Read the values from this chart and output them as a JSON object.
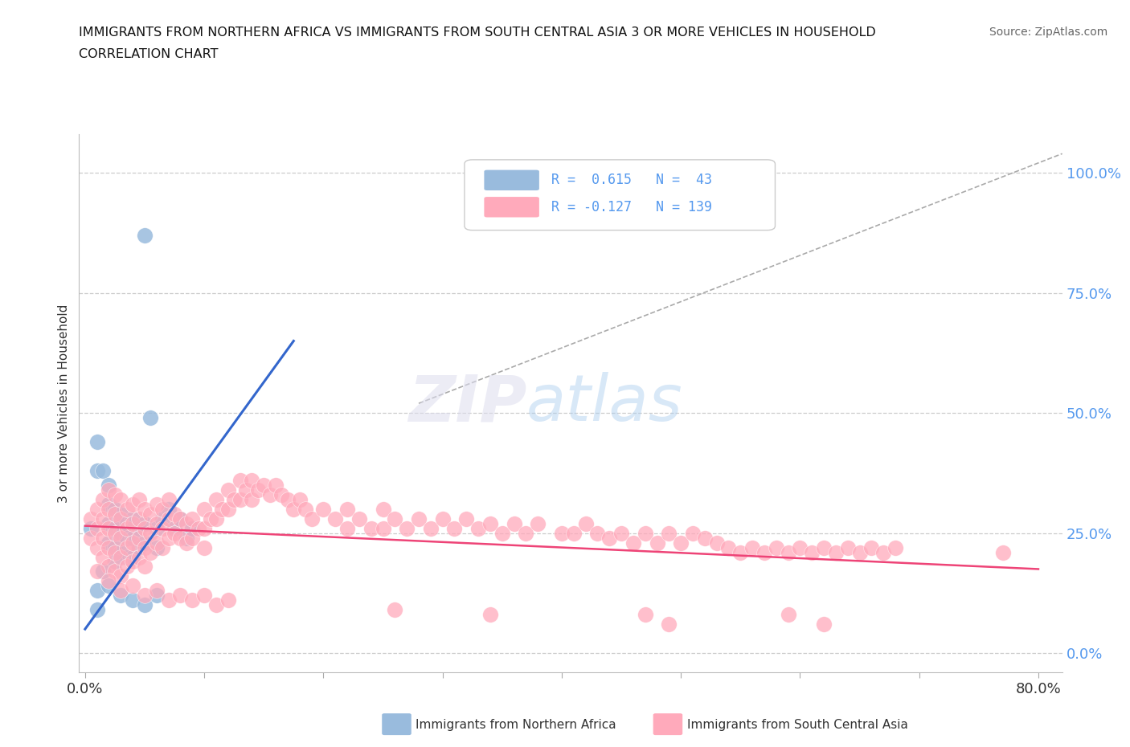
{
  "title_line1": "IMMIGRANTS FROM NORTHERN AFRICA VS IMMIGRANTS FROM SOUTH CENTRAL ASIA 3 OR MORE VEHICLES IN HOUSEHOLD",
  "title_line2": "CORRELATION CHART",
  "source": "Source: ZipAtlas.com",
  "ylabel": "3 or more Vehicles in Household",
  "xlim": [
    -0.005,
    0.82
  ],
  "ylim": [
    -0.04,
    1.08
  ],
  "ytick_vals": [
    0.0,
    0.25,
    0.5,
    0.75,
    1.0
  ],
  "ytick_labels": [
    "0.0%",
    "25.0%",
    "50.0%",
    "75.0%",
    "100.0%"
  ],
  "xtick_positions": [
    0.0,
    0.1,
    0.2,
    0.3,
    0.4,
    0.5,
    0.6,
    0.7,
    0.8
  ],
  "blue_color": "#99BBDD",
  "pink_color": "#FFAABB",
  "line_blue": "#3366CC",
  "line_pink": "#EE4477",
  "diag_color": "#AAAAAA",
  "grid_color": "#CCCCCC",
  "background_color": "#FFFFFF",
  "title_color": "#111111",
  "source_color": "#666666",
  "tick_right_color": "#5599EE",
  "blue_scatter": [
    [
      0.005,
      0.26
    ],
    [
      0.01,
      0.44
    ],
    [
      0.01,
      0.38
    ],
    [
      0.015,
      0.38
    ],
    [
      0.02,
      0.35
    ],
    [
      0.02,
      0.31
    ],
    [
      0.02,
      0.27
    ],
    [
      0.02,
      0.23
    ],
    [
      0.025,
      0.3
    ],
    [
      0.025,
      0.26
    ],
    [
      0.025,
      0.22
    ],
    [
      0.03,
      0.29
    ],
    [
      0.03,
      0.25
    ],
    [
      0.03,
      0.21
    ],
    [
      0.035,
      0.27
    ],
    [
      0.035,
      0.24
    ],
    [
      0.035,
      0.2
    ],
    [
      0.04,
      0.28
    ],
    [
      0.04,
      0.24
    ],
    [
      0.04,
      0.2
    ],
    [
      0.045,
      0.26
    ],
    [
      0.045,
      0.22
    ],
    [
      0.05,
      0.27
    ],
    [
      0.05,
      0.23
    ],
    [
      0.055,
      0.49
    ],
    [
      0.06,
      0.26
    ],
    [
      0.06,
      0.22
    ],
    [
      0.065,
      0.28
    ],
    [
      0.07,
      0.3
    ],
    [
      0.075,
      0.26
    ],
    [
      0.08,
      0.28
    ],
    [
      0.085,
      0.24
    ],
    [
      0.09,
      0.26
    ],
    [
      0.01,
      0.13
    ],
    [
      0.02,
      0.14
    ],
    [
      0.03,
      0.12
    ],
    [
      0.04,
      0.11
    ],
    [
      0.05,
      0.1
    ],
    [
      0.06,
      0.12
    ],
    [
      0.025,
      0.19
    ],
    [
      0.015,
      0.17
    ],
    [
      0.01,
      0.09
    ],
    [
      0.05,
      0.87
    ]
  ],
  "pink_scatter": [
    [
      0.005,
      0.28
    ],
    [
      0.005,
      0.24
    ],
    [
      0.01,
      0.3
    ],
    [
      0.01,
      0.26
    ],
    [
      0.01,
      0.22
    ],
    [
      0.015,
      0.32
    ],
    [
      0.015,
      0.28
    ],
    [
      0.015,
      0.24
    ],
    [
      0.015,
      0.2
    ],
    [
      0.02,
      0.34
    ],
    [
      0.02,
      0.3
    ],
    [
      0.02,
      0.26
    ],
    [
      0.02,
      0.22
    ],
    [
      0.02,
      0.18
    ],
    [
      0.025,
      0.33
    ],
    [
      0.025,
      0.29
    ],
    [
      0.025,
      0.25
    ],
    [
      0.025,
      0.21
    ],
    [
      0.025,
      0.17
    ],
    [
      0.03,
      0.32
    ],
    [
      0.03,
      0.28
    ],
    [
      0.03,
      0.24
    ],
    [
      0.03,
      0.2
    ],
    [
      0.03,
      0.16
    ],
    [
      0.035,
      0.3
    ],
    [
      0.035,
      0.26
    ],
    [
      0.035,
      0.22
    ],
    [
      0.035,
      0.18
    ],
    [
      0.04,
      0.31
    ],
    [
      0.04,
      0.27
    ],
    [
      0.04,
      0.23
    ],
    [
      0.04,
      0.19
    ],
    [
      0.045,
      0.32
    ],
    [
      0.045,
      0.28
    ],
    [
      0.045,
      0.24
    ],
    [
      0.045,
      0.2
    ],
    [
      0.05,
      0.3
    ],
    [
      0.05,
      0.26
    ],
    [
      0.05,
      0.22
    ],
    [
      0.05,
      0.18
    ],
    [
      0.055,
      0.29
    ],
    [
      0.055,
      0.25
    ],
    [
      0.055,
      0.21
    ],
    [
      0.06,
      0.31
    ],
    [
      0.06,
      0.27
    ],
    [
      0.06,
      0.23
    ],
    [
      0.065,
      0.3
    ],
    [
      0.065,
      0.26
    ],
    [
      0.065,
      0.22
    ],
    [
      0.07,
      0.32
    ],
    [
      0.07,
      0.28
    ],
    [
      0.07,
      0.24
    ],
    [
      0.075,
      0.29
    ],
    [
      0.075,
      0.25
    ],
    [
      0.08,
      0.28
    ],
    [
      0.08,
      0.24
    ],
    [
      0.085,
      0.27
    ],
    [
      0.085,
      0.23
    ],
    [
      0.09,
      0.28
    ],
    [
      0.09,
      0.24
    ],
    [
      0.095,
      0.26
    ],
    [
      0.1,
      0.3
    ],
    [
      0.1,
      0.26
    ],
    [
      0.1,
      0.22
    ],
    [
      0.105,
      0.28
    ],
    [
      0.11,
      0.32
    ],
    [
      0.11,
      0.28
    ],
    [
      0.115,
      0.3
    ],
    [
      0.12,
      0.34
    ],
    [
      0.12,
      0.3
    ],
    [
      0.125,
      0.32
    ],
    [
      0.13,
      0.36
    ],
    [
      0.13,
      0.32
    ],
    [
      0.135,
      0.34
    ],
    [
      0.14,
      0.36
    ],
    [
      0.14,
      0.32
    ],
    [
      0.145,
      0.34
    ],
    [
      0.15,
      0.35
    ],
    [
      0.155,
      0.33
    ],
    [
      0.16,
      0.35
    ],
    [
      0.165,
      0.33
    ],
    [
      0.17,
      0.32
    ],
    [
      0.175,
      0.3
    ],
    [
      0.18,
      0.32
    ],
    [
      0.185,
      0.3
    ],
    [
      0.19,
      0.28
    ],
    [
      0.2,
      0.3
    ],
    [
      0.21,
      0.28
    ],
    [
      0.22,
      0.3
    ],
    [
      0.22,
      0.26
    ],
    [
      0.23,
      0.28
    ],
    [
      0.24,
      0.26
    ],
    [
      0.25,
      0.3
    ],
    [
      0.25,
      0.26
    ],
    [
      0.26,
      0.28
    ],
    [
      0.27,
      0.26
    ],
    [
      0.28,
      0.28
    ],
    [
      0.29,
      0.26
    ],
    [
      0.3,
      0.28
    ],
    [
      0.31,
      0.26
    ],
    [
      0.32,
      0.28
    ],
    [
      0.33,
      0.26
    ],
    [
      0.34,
      0.27
    ],
    [
      0.35,
      0.25
    ],
    [
      0.36,
      0.27
    ],
    [
      0.37,
      0.25
    ],
    [
      0.38,
      0.27
    ],
    [
      0.4,
      0.25
    ],
    [
      0.41,
      0.25
    ],
    [
      0.42,
      0.27
    ],
    [
      0.43,
      0.25
    ],
    [
      0.44,
      0.24
    ],
    [
      0.45,
      0.25
    ],
    [
      0.46,
      0.23
    ],
    [
      0.47,
      0.25
    ],
    [
      0.48,
      0.23
    ],
    [
      0.49,
      0.25
    ],
    [
      0.5,
      0.23
    ],
    [
      0.51,
      0.25
    ],
    [
      0.52,
      0.24
    ],
    [
      0.53,
      0.23
    ],
    [
      0.54,
      0.22
    ],
    [
      0.55,
      0.21
    ],
    [
      0.56,
      0.22
    ],
    [
      0.57,
      0.21
    ],
    [
      0.58,
      0.22
    ],
    [
      0.59,
      0.21
    ],
    [
      0.6,
      0.22
    ],
    [
      0.61,
      0.21
    ],
    [
      0.62,
      0.22
    ],
    [
      0.63,
      0.21
    ],
    [
      0.64,
      0.22
    ],
    [
      0.65,
      0.21
    ],
    [
      0.66,
      0.22
    ],
    [
      0.67,
      0.21
    ],
    [
      0.68,
      0.22
    ],
    [
      0.77,
      0.21
    ],
    [
      0.01,
      0.17
    ],
    [
      0.02,
      0.15
    ],
    [
      0.03,
      0.13
    ],
    [
      0.04,
      0.14
    ],
    [
      0.05,
      0.12
    ],
    [
      0.06,
      0.13
    ],
    [
      0.07,
      0.11
    ],
    [
      0.08,
      0.12
    ],
    [
      0.09,
      0.11
    ],
    [
      0.1,
      0.12
    ],
    [
      0.11,
      0.1
    ],
    [
      0.12,
      0.11
    ],
    [
      0.26,
      0.09
    ],
    [
      0.34,
      0.08
    ],
    [
      0.47,
      0.08
    ],
    [
      0.49,
      0.06
    ],
    [
      0.59,
      0.08
    ],
    [
      0.62,
      0.06
    ]
  ],
  "blue_line_x": [
    0.0,
    0.175
  ],
  "blue_line_y": [
    0.05,
    0.65
  ],
  "pink_line_x": [
    0.0,
    0.8
  ],
  "pink_line_y": [
    0.265,
    0.175
  ],
  "diag_line_x": [
    0.28,
    0.82
  ],
  "diag_line_y": [
    0.52,
    1.04
  ]
}
